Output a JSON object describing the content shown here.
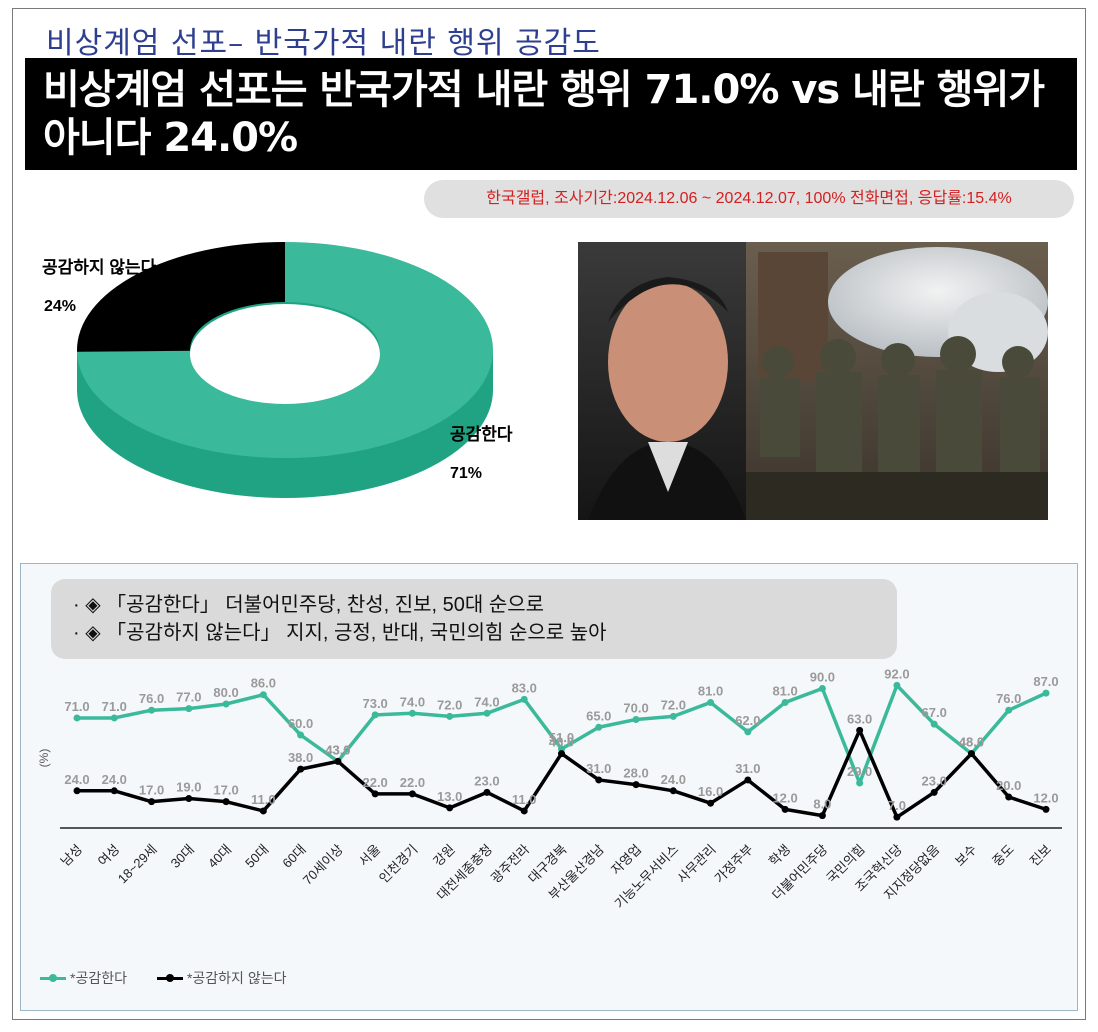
{
  "top_title": "비상계엄 선포– 반국가적 내란 행위 공감도",
  "headline": {
    "line1": "비상계엄 선포는 반국가적 내란 행위 71.0% vs 내란 행위가",
    "line2": "아니다 24.0%"
  },
  "source": "한국갤럽, 조사기간:2024.12.06 ~ 2024.12.07, 100% 전화면접, 응답률:15.4%",
  "bullets": [
    "· ◈ 「공감한다」 더불어민주당, 찬성, 진보, 50대 순으로",
    "· ◈ 「공감하지 않는다」 지지, 긍정, 반대, 국민의힘 순으로 높아"
  ],
  "colors": {
    "agree": "#3aba9b",
    "agree_dark": "#1fa383",
    "disagree": "#000000",
    "title": "#2f3f8f",
    "source": "#d32020"
  },
  "photo": {
    "icon": "news-photo-icon"
  },
  "chart_data": [
    {
      "type": "pie",
      "style": "donut",
      "categories": [
        "공감한다",
        "공감하지 않는다"
      ],
      "values": [
        71,
        24
      ],
      "labels": [
        "71%",
        "24%"
      ],
      "colors": [
        "#3aba9b",
        "#000000"
      ]
    },
    {
      "type": "line",
      "ylabel": "(%)",
      "ylim": [
        0,
        100
      ],
      "grid": false,
      "legend": "bottom-left",
      "categories": [
        "남성",
        "여성",
        "18~29세",
        "30대",
        "40대",
        "50대",
        "60대",
        "70세이상",
        "서울",
        "인천경기",
        "강원",
        "대전세종충청",
        "광주전라",
        "대구경북",
        "부산울산경남",
        "자영업",
        "기능노무서비스",
        "사무관리",
        "가정주부",
        "학생",
        "더불어민주당",
        "국민의힘",
        "조국혁신당",
        "지지정당없음",
        "보수",
        "중도",
        "진보"
      ],
      "series": [
        {
          "name": "*공감한다",
          "color": "#3aba9b",
          "values": [
            71,
            71,
            76,
            77,
            80,
            86,
            60,
            43,
            73,
            74,
            72,
            74,
            83,
            51,
            65,
            70,
            72,
            81,
            62,
            81,
            90,
            29,
            92,
            67,
            48,
            76,
            87
          ],
          "labels": [
            "71.0",
            "71.0",
            "76.0",
            "77.0",
            "80.0",
            "86.0",
            "60.0",
            "43.0",
            "73.0",
            "74.0",
            "72.0",
            "74.0",
            "83.0",
            "51.0",
            "65.0",
            "70.0",
            "72.0",
            "81.0",
            "62.0",
            "81.0",
            "90.0",
            "29.0",
            "92.0",
            "67.0",
            "48.0",
            "76.0",
            "87.0"
          ]
        },
        {
          "name": "*공감하지 않는다",
          "color": "#000000",
          "values": [
            24,
            24,
            17,
            19,
            17,
            11,
            38,
            43,
            22,
            22,
            13,
            23,
            11,
            48,
            31,
            28,
            24,
            16,
            31,
            12,
            8,
            63,
            7,
            23,
            48,
            20,
            12
          ],
          "labels": [
            "24.0",
            "24.0",
            "17.0",
            "19.0",
            "17.0",
            "11.0",
            "38.0",
            "43.0",
            "22.0",
            "22.0",
            "13.0",
            "23.0",
            "11.0",
            "48.0",
            "31.0",
            "28.0",
            "24.0",
            "16.0",
            "31.0",
            "12.0",
            "8.0",
            "63.0",
            "7.0",
            "23.0",
            "48.0",
            "20.0",
            "12.0"
          ]
        }
      ]
    }
  ]
}
